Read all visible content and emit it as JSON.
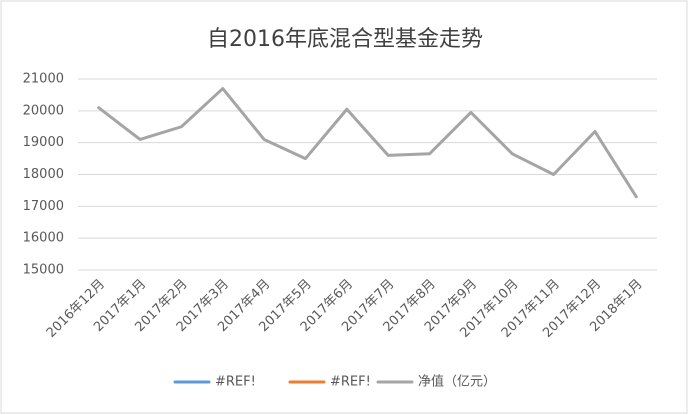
{
  "chart_data": {
    "type": "line",
    "title": "自2016年底混合型基金走势",
    "categories": [
      "2016年12月",
      "2017年1月",
      "2017年2月",
      "2017年3月",
      "2017年4月",
      "2017年5月",
      "2017年6月",
      "2017年7月",
      "2017年8月",
      "2017年9月",
      "2017年10月",
      "2017年11月",
      "2017年12月",
      "2018年1月"
    ],
    "series": [
      {
        "name": "#REF!",
        "color": "#5b9bd5",
        "values": [
          null,
          null,
          null,
          null,
          null,
          null,
          null,
          null,
          null,
          null,
          null,
          null,
          null,
          null
        ]
      },
      {
        "name": "#REF!",
        "color": "#ed7d31",
        "values": [
          null,
          null,
          null,
          null,
          null,
          null,
          null,
          null,
          null,
          null,
          null,
          null,
          null,
          null
        ]
      },
      {
        "name": "净值（亿元）",
        "color": "#a5a5a5",
        "values": [
          20100,
          19100,
          19500,
          20700,
          19100,
          18500,
          20050,
          18600,
          18650,
          19950,
          18650,
          18000,
          19350,
          17300
        ]
      }
    ],
    "ylim": [
      15000,
      21000
    ],
    "yticks": [
      15000,
      16000,
      17000,
      18000,
      19000,
      20000,
      21000
    ],
    "grid": true,
    "legend": "bottom"
  }
}
